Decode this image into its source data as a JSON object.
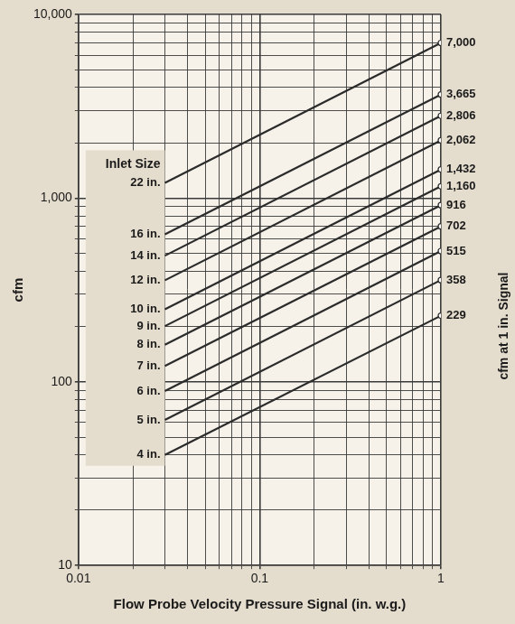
{
  "chart_data": {
    "type": "line",
    "x_label": "Flow Probe Velocity Pressure Signal (in. w.g.)",
    "y_label": "cfm",
    "y2_label": "cfm at 1 in. Signal",
    "legend_title": "Inlet Size",
    "log": true,
    "grid": true,
    "data_labels": true,
    "color": "#2b2b2b",
    "marker": "circle",
    "xlim": [
      0.01,
      1
    ],
    "xticks": [
      0.01,
      0.1,
      1
    ],
    "ylim": [
      10,
      10000
    ],
    "yticks": [
      10,
      100,
      {
        "value": 1000,
        "label": "1,000"
      },
      {
        "value": 10000,
        "label": "10,000"
      }
    ],
    "x": [
      0.03,
      1
    ],
    "series": [
      {
        "name": "22 in.",
        "values": [
          1212,
          7000
        ],
        "value_labels": [
          null,
          "7,000"
        ]
      },
      {
        "name": "16 in.",
        "values": [
          635,
          3665
        ],
        "value_labels": [
          null,
          "3,665"
        ]
      },
      {
        "name": "14 in.",
        "values": [
          486,
          2806
        ],
        "value_labels": [
          null,
          "2,806"
        ]
      },
      {
        "name": "12 in.",
        "values": [
          357,
          2062
        ],
        "value_labels": [
          null,
          "2,062"
        ]
      },
      {
        "name": "10 in.",
        "values": [
          248,
          1432
        ],
        "value_labels": [
          null,
          "1,432"
        ]
      },
      {
        "name": "9 in.",
        "values": [
          201,
          1160
        ],
        "value_labels": [
          null,
          "1,160"
        ]
      },
      {
        "name": "8 in.",
        "values": [
          159,
          916
        ],
        "value_labels": [
          null,
          "916"
        ]
      },
      {
        "name": "7 in.",
        "values": [
          122,
          702
        ],
        "value_labels": [
          null,
          "702"
        ]
      },
      {
        "name": "6 in.",
        "values": [
          89,
          515
        ],
        "value_labels": [
          null,
          "515"
        ]
      },
      {
        "name": "5 in.",
        "values": [
          62,
          358
        ],
        "value_labels": [
          null,
          "358"
        ]
      },
      {
        "name": "4 in.",
        "values": [
          40,
          229
        ],
        "value_labels": [
          null,
          "229"
        ]
      }
    ]
  }
}
